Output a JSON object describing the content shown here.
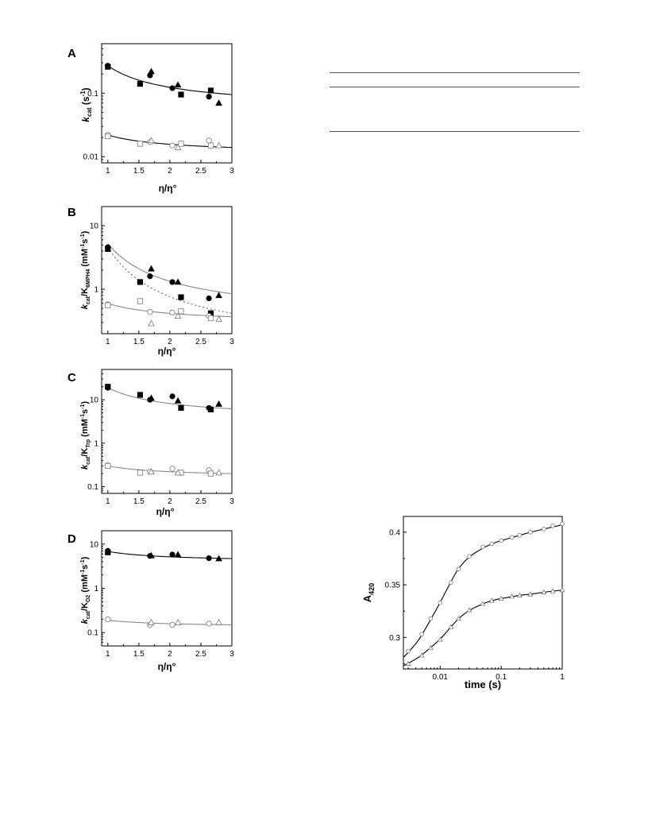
{
  "panels": [
    {
      "letter": "A",
      "ylabel_main": "k",
      "ylabel_sub": "cat",
      "ylabel_rest": " (s",
      "ylabel_sup": "-1",
      "ylabel_end": ")",
      "xlabel": "η/η°",
      "yticks": [
        "0.01",
        "0.1"
      ],
      "xticks": [
        "1",
        "1.5",
        "2",
        "2.5",
        "3"
      ]
    },
    {
      "letter": "B",
      "ylabel_main": "k",
      "ylabel_sub": "cat",
      "ylabel_rest": "/K",
      "ylabel_sub2": "6MPH4",
      "ylabel_units": " (mM",
      "ylabel_sup": "-1",
      "ylabel_mid": "s",
      "ylabel_sup2": "-1",
      "ylabel_end": ")",
      "xlabel": "η/η°",
      "yticks": [
        "1",
        "10"
      ],
      "xticks": [
        "1",
        "1.5",
        "2",
        "2.5",
        "3"
      ]
    },
    {
      "letter": "C",
      "ylabel_main": "k",
      "ylabel_sub": "cat",
      "ylabel_rest": "/K",
      "ylabel_sub2": "Trp",
      "ylabel_units": " (mM",
      "ylabel_sup": "-1",
      "ylabel_mid": "s",
      "ylabel_sup2": "-1",
      "ylabel_end": ")",
      "xlabel": "η/η°",
      "yticks": [
        "0.1",
        "1",
        "10"
      ],
      "xticks": [
        "1",
        "1.5",
        "2",
        "2.5",
        "3"
      ]
    },
    {
      "letter": "D",
      "ylabel_main": "k",
      "ylabel_sub": "cat",
      "ylabel_rest": "/K",
      "ylabel_sub2": "O2",
      "ylabel_units": " (mM",
      "ylabel_sup": "-1",
      "ylabel_mid": "s",
      "ylabel_sup2": "-1",
      "ylabel_end": ")",
      "xlabel": "η/η°",
      "yticks": [
        "0.1",
        "1",
        "10"
      ],
      "xticks": [
        "1",
        "1.5",
        "2",
        "2.5",
        "3"
      ]
    },
    {
      "letter": "",
      "ylabel_main": "A",
      "ylabel_sub": "420",
      "xlabel": "time (s)",
      "yticks": [
        "0.3",
        "0.35",
        "0.4"
      ],
      "xticks": [
        "0.01",
        "0.1",
        "1"
      ]
    }
  ],
  "chart_data": [
    {
      "type": "scatter",
      "panel": "A",
      "xlabel": "η/η°",
      "ylabel": "kcat (s-1)",
      "xlim": [
        0.9,
        3.0
      ],
      "ylim": [
        0.008,
        0.6
      ],
      "yscale": "log",
      "series": [
        {
          "marker": "filled-circle",
          "x": [
            1.0,
            1.68,
            2.04,
            2.63
          ],
          "y": [
            0.27,
            0.19,
            0.12,
            0.088
          ]
        },
        {
          "marker": "filled-square",
          "x": [
            1.0,
            1.52,
            2.18,
            2.66
          ],
          "y": [
            0.26,
            0.14,
            0.095,
            0.11
          ]
        },
        {
          "marker": "filled-triangle",
          "x": [
            1.7,
            2.13,
            2.79
          ],
          "y": [
            0.22,
            0.135,
            0.07
          ]
        },
        {
          "marker": "open-circle",
          "x": [
            1.0,
            1.68,
            2.04,
            2.63
          ],
          "y": [
            0.022,
            0.017,
            0.015,
            0.018
          ]
        },
        {
          "marker": "open-square",
          "x": [
            1.0,
            1.52,
            2.18,
            2.66
          ],
          "y": [
            0.021,
            0.016,
            0.016,
            0.015
          ]
        },
        {
          "marker": "open-triangle",
          "x": [
            1.7,
            2.13,
            2.79
          ],
          "y": [
            0.018,
            0.014,
            0.015
          ]
        }
      ],
      "fits": [
        {
          "style": "solid",
          "color": "#000000",
          "x": [
            1.0,
            3.0
          ],
          "y": [
            0.27,
            0.095
          ]
        },
        {
          "style": "solid",
          "color": "#000000",
          "x": [
            1.0,
            3.0
          ],
          "y": [
            0.022,
            0.014
          ]
        }
      ]
    },
    {
      "type": "scatter",
      "panel": "B",
      "xlabel": "η/η°",
      "ylabel": "kcat/K6MPH4 (mM-1s-1)",
      "xlim": [
        0.9,
        3.0
      ],
      "ylim": [
        0.2,
        20
      ],
      "yscale": "log",
      "series": [
        {
          "marker": "filled-circle",
          "x": [
            1.0,
            1.68,
            2.04,
            2.63
          ],
          "y": [
            4.6,
            1.6,
            1.3,
            0.72
          ]
        },
        {
          "marker": "filled-square",
          "x": [
            1.0,
            1.52,
            2.18,
            2.66
          ],
          "y": [
            4.3,
            1.3,
            0.75,
            0.42
          ]
        },
        {
          "marker": "filled-triangle",
          "x": [
            1.7,
            2.13,
            2.79
          ],
          "y": [
            2.1,
            1.3,
            0.8
          ]
        },
        {
          "marker": "open-circle",
          "x": [
            1.0,
            1.68,
            2.04,
            2.63
          ],
          "y": [
            0.58,
            0.44,
            0.43,
            0.38
          ]
        },
        {
          "marker": "open-square",
          "x": [
            1.0,
            1.52,
            2.18,
            2.66
          ],
          "y": [
            0.56,
            0.65,
            0.45,
            0.35
          ]
        },
        {
          "marker": "open-triangle",
          "x": [
            1.7,
            2.13,
            2.79
          ],
          "y": [
            0.29,
            0.38,
            0.34
          ]
        }
      ],
      "fits": [
        {
          "style": "solid",
          "color": "#888888",
          "x": [
            1.0,
            3.0
          ],
          "y": [
            5.2,
            0.85
          ]
        },
        {
          "style": "dotted",
          "color": "#666666",
          "x": [
            1.0,
            3.0
          ],
          "y": [
            4.6,
            0.42
          ]
        },
        {
          "style": "solid",
          "color": "#888888",
          "x": [
            1.0,
            3.0
          ],
          "y": [
            0.6,
            0.37
          ]
        }
      ]
    },
    {
      "type": "scatter",
      "panel": "C",
      "xlabel": "η/η°",
      "ylabel": "kcat/KTrp (mM-1s-1)",
      "xlim": [
        0.9,
        3.0
      ],
      "ylim": [
        0.07,
        50
      ],
      "yscale": "log",
      "series": [
        {
          "marker": "filled-circle",
          "x": [
            1.0,
            1.68,
            2.04,
            2.63
          ],
          "y": [
            19,
            10,
            12,
            6.5
          ]
        },
        {
          "marker": "filled-square",
          "x": [
            1.0,
            1.52,
            2.18,
            2.66
          ],
          "y": [
            20,
            13,
            6.5,
            6.0
          ]
        },
        {
          "marker": "filled-triangle",
          "x": [
            1.7,
            2.13,
            2.79
          ],
          "y": [
            11,
            9.5,
            8.0
          ]
        },
        {
          "marker": "open-circle",
          "x": [
            1.0,
            1.68,
            2.04,
            2.63
          ],
          "y": [
            0.31,
            0.22,
            0.26,
            0.24
          ]
        },
        {
          "marker": "open-square",
          "x": [
            1.0,
            1.52,
            2.18,
            2.66
          ],
          "y": [
            0.3,
            0.21,
            0.21,
            0.2
          ]
        },
        {
          "marker": "open-triangle",
          "x": [
            1.7,
            2.13,
            2.79
          ],
          "y": [
            0.22,
            0.21,
            0.21
          ]
        }
      ],
      "fits": [
        {
          "style": "solid",
          "color": "#888888",
          "x": [
            1.0,
            3.0
          ],
          "y": [
            19,
            6.2
          ]
        },
        {
          "style": "solid",
          "color": "#888888",
          "x": [
            1.0,
            3.0
          ],
          "y": [
            0.3,
            0.2
          ]
        }
      ]
    },
    {
      "type": "scatter",
      "panel": "D",
      "xlabel": "η/η°",
      "ylabel": "kcat/KO2 (mM-1s-1)",
      "xlim": [
        0.9,
        3.0
      ],
      "ylim": [
        0.05,
        20
      ],
      "yscale": "log",
      "series": [
        {
          "marker": "filled-circle",
          "x": [
            1.0,
            1.68,
            2.04,
            2.63
          ],
          "y": [
            7.0,
            5.4,
            5.8,
            4.8
          ]
        },
        {
          "marker": "filled-square",
          "x": [
            1.0
          ],
          "y": [
            6.5
          ]
        },
        {
          "marker": "filled-triangle",
          "x": [
            1.7,
            2.13,
            2.79
          ],
          "y": [
            5.5,
            5.8,
            4.7
          ]
        },
        {
          "marker": "open-circle",
          "x": [
            1.0,
            1.68,
            2.04,
            2.63
          ],
          "y": [
            0.2,
            0.15,
            0.15,
            0.16
          ]
        },
        {
          "marker": "open-triangle",
          "x": [
            1.7,
            2.13,
            2.79
          ],
          "y": [
            0.17,
            0.17,
            0.17
          ]
        }
      ],
      "fits": [
        {
          "style": "solid",
          "color": "#000000",
          "x": [
            1.0,
            3.0
          ],
          "y": [
            6.8,
            4.7
          ]
        },
        {
          "style": "solid",
          "color": "#888888",
          "x": [
            1.0,
            3.0
          ],
          "y": [
            0.19,
            0.15
          ]
        }
      ]
    },
    {
      "type": "scatter",
      "panel": "E",
      "xlabel": "time (s)",
      "ylabel": "A420",
      "xlim": [
        0.0025,
        1.0
      ],
      "ylim": [
        0.27,
        0.415
      ],
      "xscale": "log",
      "series": [
        {
          "marker": "open-circle",
          "x": [
            0.003,
            0.005,
            0.007,
            0.01,
            0.015,
            0.02,
            0.03,
            0.05,
            0.07,
            0.1,
            0.15,
            0.2,
            0.3,
            0.5,
            0.7,
            1.0
          ],
          "y": [
            0.287,
            0.303,
            0.318,
            0.333,
            0.352,
            0.365,
            0.377,
            0.386,
            0.389,
            0.392,
            0.395,
            0.397,
            0.4,
            0.403,
            0.406,
            0.408
          ]
        },
        {
          "marker": "open-triangle",
          "x": [
            0.003,
            0.005,
            0.007,
            0.01,
            0.015,
            0.02,
            0.03,
            0.05,
            0.07,
            0.1,
            0.15,
            0.2,
            0.3,
            0.5,
            0.7,
            1.0
          ],
          "y": [
            0.275,
            0.283,
            0.29,
            0.298,
            0.31,
            0.318,
            0.326,
            0.332,
            0.335,
            0.337,
            0.339,
            0.34,
            0.341,
            0.343,
            0.344,
            0.345
          ]
        }
      ],
      "fits": [
        {
          "style": "solid",
          "color": "#000000",
          "x": [
            0.0025,
            0.004,
            0.006,
            0.01,
            0.015,
            0.02,
            0.03,
            0.05,
            0.07,
            0.1,
            0.2,
            0.3,
            0.5,
            1.0
          ],
          "y": [
            0.281,
            0.293,
            0.31,
            0.333,
            0.353,
            0.366,
            0.377,
            0.385,
            0.389,
            0.392,
            0.397,
            0.4,
            0.403,
            0.407
          ]
        },
        {
          "style": "solid",
          "color": "#000000",
          "x": [
            0.0025,
            0.004,
            0.006,
            0.01,
            0.015,
            0.02,
            0.03,
            0.05,
            0.07,
            0.1,
            0.2,
            0.3,
            0.5,
            1.0
          ],
          "y": [
            0.273,
            0.279,
            0.287,
            0.298,
            0.31,
            0.318,
            0.326,
            0.332,
            0.335,
            0.337,
            0.34,
            0.341,
            0.343,
            0.345
          ]
        }
      ]
    }
  ]
}
